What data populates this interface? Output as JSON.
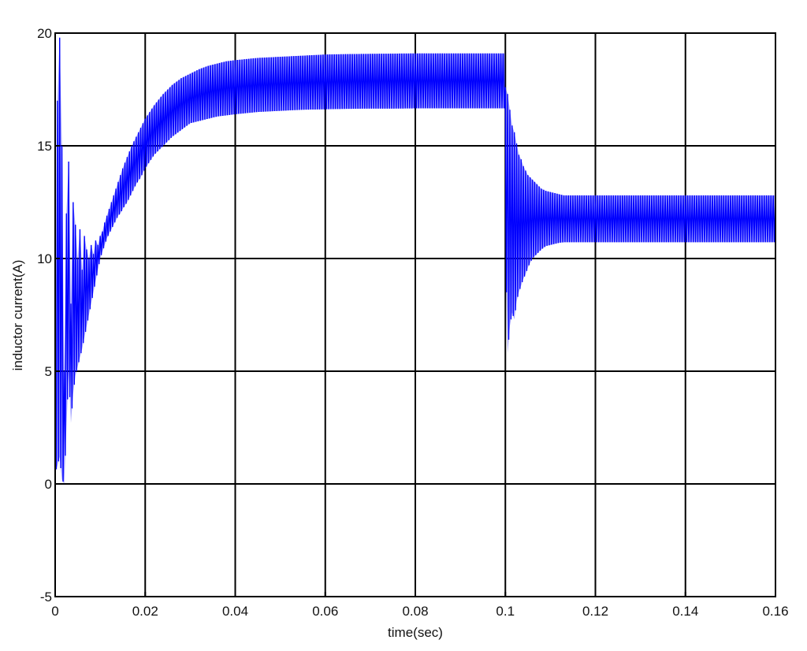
{
  "chart_data": {
    "type": "line",
    "title": "",
    "xlabel": "time(sec)",
    "ylabel": "inductor current(A)",
    "xlim": [
      0,
      0.16
    ],
    "ylim": [
      -5,
      20
    ],
    "xticks": [
      0,
      0.02,
      0.04,
      0.06,
      0.08,
      0.1,
      0.12,
      0.14,
      0.16
    ],
    "xtick_labels": [
      "0",
      "0.02",
      "0.04",
      "0.06",
      "0.08",
      "0.1",
      "0.12",
      "0.14",
      "0.16"
    ],
    "yticks": [
      -5,
      0,
      5,
      10,
      15,
      20
    ],
    "ytick_labels": [
      "-5",
      "0",
      "5",
      "10",
      "15",
      "20"
    ],
    "grid": true,
    "line_color": "#0000ff",
    "series": [
      {
        "x": [
          0,
          0.0005,
          0.001,
          0.0015,
          0.002,
          0.0025,
          0.003,
          0.0035,
          0.004,
          0.0045,
          0.005,
          0.0055,
          0.006,
          0.0065,
          0.007,
          0.0075,
          0.008,
          0.0085,
          0.009,
          0.0095,
          0.01,
          0.0105,
          0.011,
          0.0115,
          0.012,
          0.0125,
          0.013,
          0.0135,
          0.014,
          0.0145,
          0.015,
          0.016,
          0.017,
          0.018,
          0.019,
          0.02,
          0.022,
          0.024,
          0.026,
          0.028,
          0.03,
          0.032,
          0.034,
          0.036,
          0.038,
          0.04,
          0.045,
          0.05,
          0.055,
          0.06,
          0.065,
          0.07,
          0.075,
          0.08,
          0.085,
          0.09,
          0.095,
          0.0999,
          0.1,
          0.1005,
          0.101,
          0.1015,
          0.102,
          0.1025,
          0.103,
          0.1035,
          0.104,
          0.1045,
          0.105,
          0.1055,
          0.106,
          0.1065,
          0.107,
          0.1075,
          0.108,
          0.109,
          0.11,
          0.111,
          0.112,
          0.113,
          0.114,
          0.115,
          0.117,
          0.119,
          0.12,
          0.13,
          0.14,
          0.15,
          0.16
        ],
        "y_upper": [
          1,
          17,
          19.8,
          15,
          5,
          12,
          14.3,
          8,
          12.5,
          11.5,
          10,
          11.3,
          9.5,
          11,
          10.4,
          10,
          10.6,
          10.2,
          10.8,
          10.6,
          11,
          11.2,
          11.6,
          11.9,
          12.2,
          12.5,
          12.8,
          13.1,
          13.4,
          13.7,
          14,
          14.5,
          15,
          15.4,
          15.8,
          16.2,
          16.8,
          17.3,
          17.7,
          18,
          18.2,
          18.4,
          18.55,
          18.65,
          18.75,
          18.8,
          18.9,
          18.95,
          19,
          19.05,
          19.07,
          19.08,
          19.09,
          19.1,
          19.1,
          19.1,
          19.1,
          19.1,
          17.6,
          17.3,
          16.6,
          15.9,
          15.6,
          15.1,
          14.6,
          14.4,
          14.1,
          13.9,
          13.7,
          13.6,
          13.5,
          13.4,
          13.3,
          13.2,
          13.1,
          13,
          12.95,
          12.9,
          12.85,
          12.8,
          12.8,
          12.8,
          12.8,
          12.8,
          12.8,
          12.8,
          12.8,
          12.8,
          12.8
        ],
        "y_lower": [
          0.5,
          0.8,
          1.2,
          0.2,
          0,
          2.5,
          5,
          2.7,
          4,
          4.8,
          5.2,
          5.6,
          6,
          6.5,
          7,
          7.5,
          8,
          8.5,
          9,
          9.5,
          10,
          10.3,
          10.6,
          10.9,
          11.1,
          11.3,
          11.5,
          11.7,
          11.9,
          12,
          12.2,
          12.5,
          12.9,
          13.3,
          13.6,
          14,
          14.6,
          15,
          15.4,
          15.7,
          16,
          16.1,
          16.2,
          16.3,
          16.35,
          16.4,
          16.5,
          16.55,
          16.6,
          16.62,
          16.64,
          16.65,
          16.65,
          16.66,
          16.66,
          16.66,
          16.66,
          16.66,
          11.2,
          5.8,
          7,
          7.6,
          7.3,
          8.1,
          8.5,
          8.8,
          9.1,
          9.3,
          9.6,
          9.8,
          10,
          10.1,
          10.2,
          10.3,
          10.4,
          10.55,
          10.6,
          10.65,
          10.7,
          10.72,
          10.72,
          10.72,
          10.72,
          10.72,
          10.72,
          10.72,
          10.72,
          10.72,
          10.72
        ]
      }
    ]
  }
}
